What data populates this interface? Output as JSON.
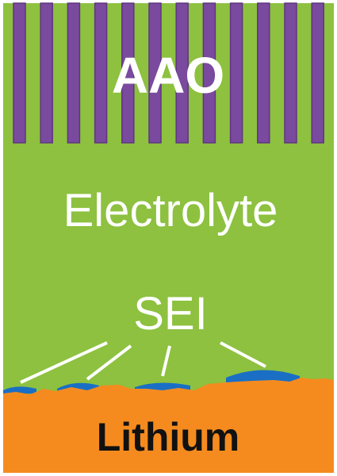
{
  "labels": {
    "aao": "AAO",
    "electrolyte": "Electrolyte",
    "sei": "SEI",
    "lithium": "Lithium"
  }
}
